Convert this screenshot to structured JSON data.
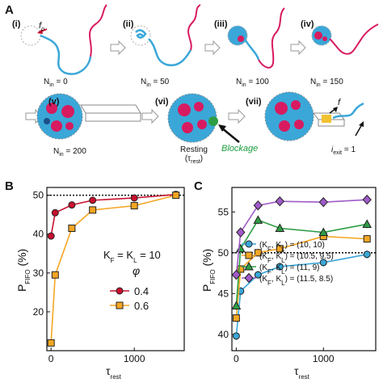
{
  "panelA": {
    "letter": "A",
    "steps": [
      {
        "roman": "(i)",
        "nin": "N",
        "nin_sub": "in",
        "nin_val": " = 0"
      },
      {
        "roman": "(ii)",
        "nin": "N",
        "nin_sub": "in",
        "nin_val": " = 50"
      },
      {
        "roman": "(iii)",
        "nin": "N",
        "nin_sub": "in",
        "nin_val": " = 100"
      },
      {
        "roman": "(iv)",
        "nin": "N",
        "nin_sub": "in",
        "nin_val": " = 150"
      },
      {
        "roman": "(v)",
        "nin": "N",
        "nin_sub": "in",
        "nin_val": " = 200"
      },
      {
        "roman": "(vi)"
      },
      {
        "roman": "(vii)"
      }
    ],
    "fp_label": "f",
    "fp_sub": "p",
    "resting_label": "Resting",
    "resting_tau": "(τ",
    "resting_tau_sub": "rest",
    "resting_close": ")",
    "blockage_label": "Blockage",
    "f_label": "f",
    "iexit_label": "i",
    "iexit_sub": "exit",
    "iexit_val": " = 1",
    "colors": {
      "blue": "#3aa7d8",
      "red": "#d81b60",
      "green": "#2e9e44",
      "yellow": "#f2c230"
    }
  },
  "chart_data": [
    {
      "panel": "B",
      "type": "line",
      "xlabel": "τ",
      "xlabel_sub": "rest",
      "ylabel": "P",
      "ylabel_sub": "FIFO",
      "ylabel_unit": " (%)",
      "xlim": [
        -50,
        1600
      ],
      "ylim": [
        10,
        52
      ],
      "xticks": [
        0,
        1000
      ],
      "yticks": [
        20,
        30,
        40,
        50
      ],
      "reference_line": 50,
      "annotation": "K",
      "annotation_sub1": "F",
      "annotation_mid": " = K",
      "annotation_sub2": "L",
      "annotation_end": " = 10",
      "legend_title": "φ",
      "series": [
        {
          "name": "0.4",
          "color": "#c8102e",
          "marker": "circle",
          "x": [
            0,
            50,
            250,
            500,
            1000,
            1500
          ],
          "y": [
            39.5,
            45.5,
            47.5,
            48.7,
            49.3,
            50.2
          ]
        },
        {
          "name": "0.6",
          "color": "#f5a623",
          "marker": "square",
          "x": [
            0,
            50,
            250,
            500,
            1000,
            1500
          ],
          "y": [
            12,
            29.5,
            41.5,
            46.2,
            47.3,
            50
          ]
        }
      ]
    },
    {
      "panel": "C",
      "type": "line",
      "xlabel": "τ",
      "xlabel_sub": "rest",
      "ylabel": "P",
      "ylabel_sub": "FIFO",
      "ylabel_unit": " (%)",
      "xlim": [
        -50,
        1600
      ],
      "ylim": [
        38,
        58
      ],
      "xticks": [
        0,
        1000
      ],
      "yticks": [
        40,
        45,
        50,
        55
      ],
      "reference_line": 50,
      "series": [
        {
          "name": "(K",
          "name_sub1": "F",
          "name_mid": ", K",
          "name_sub2": "L",
          "name_end": ") = (10, 10)",
          "color": "#3aa7d8",
          "marker": "circle",
          "x": [
            0,
            50,
            250,
            500,
            1000,
            1500
          ],
          "y": [
            39.8,
            45.3,
            47.3,
            48.3,
            48.8,
            49.8
          ]
        },
        {
          "name": "(K",
          "name_sub1": "F",
          "name_mid": ", K",
          "name_sub2": "L",
          "name_end": ") = (10.5, 9.5)",
          "color": "#f5a623",
          "marker": "square",
          "x": [
            0,
            50,
            250,
            500,
            1000,
            1500
          ],
          "y": [
            42,
            48,
            50,
            50.5,
            52,
            51.7
          ]
        },
        {
          "name": "(K",
          "name_sub1": "F",
          "name_mid": ", K",
          "name_sub2": "L",
          "name_end": ") = (11, 9)",
          "color": "#2e9e44",
          "marker": "triangle",
          "x": [
            0,
            50,
            250,
            500,
            1000,
            1500
          ],
          "y": [
            43.5,
            50.5,
            54,
            53,
            52.5,
            53.5
          ]
        },
        {
          "name": "(K",
          "name_sub1": "F",
          "name_mid": ", K",
          "name_sub2": "L",
          "name_end": ") = (11.5, 8.5)",
          "color": "#a05bc8",
          "marker": "diamond",
          "x": [
            0,
            50,
            250,
            500,
            1000,
            1500
          ],
          "y": [
            47.3,
            52.5,
            55.8,
            56.3,
            56.2,
            56.5
          ]
        }
      ]
    }
  ]
}
